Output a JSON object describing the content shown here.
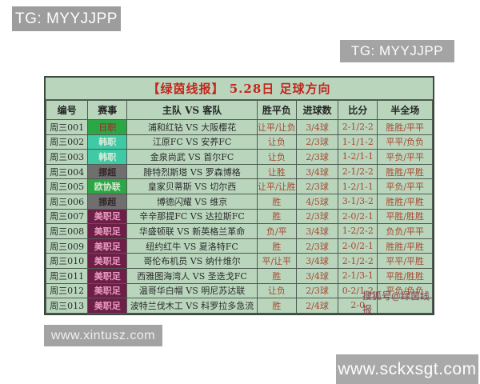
{
  "watermarks": {
    "tg_top_left": "TG: MYYJJPP",
    "tg_top_right": "TG: MYYJJPP",
    "site_bottom_left": "www.xintusz.com",
    "site_bottom_right": "www.sckxsgt.com",
    "table_overlay": "搜狐号@绿茵线报"
  },
  "table": {
    "title": "【绿茵线报】 5.28日 足球方向",
    "columns": [
      "编号",
      "赛事",
      "主队 VS 客队",
      "胜平负",
      "进球数",
      "比分",
      "半全场"
    ],
    "rows": [
      {
        "id": "周三001",
        "league": "日职",
        "match": "浦和红钻 VS 大阪樱花",
        "wdl": "让平/让负",
        "goals": "3/4球",
        "score": "2-1/2-2",
        "half_full": "胜胜/平平"
      },
      {
        "id": "周三002",
        "league": "韩职",
        "match": "江原FC VS 安养FC",
        "wdl": "让负",
        "goals": "2/3球",
        "score": "1-1/1-2",
        "half_full": "平平/负负"
      },
      {
        "id": "周三003",
        "league": "韩职",
        "match": "金泉尚武 VS 首尔FC",
        "wdl": "让负",
        "goals": "2/3球",
        "score": "1-2/1-1",
        "half_full": "平负/平平"
      },
      {
        "id": "周三004",
        "league": "挪超",
        "match": "腓特烈斯塔 VS 罗森博格",
        "wdl": "让胜",
        "goals": "3/4球",
        "score": "2-1/2-2",
        "half_full": "胜胜/平胜"
      },
      {
        "id": "周三005",
        "league": "欧协联",
        "match": "皇家贝蒂斯 VS 切尔西",
        "wdl": "让平/让胜",
        "goals": "2/3球",
        "score": "1-2/1-1",
        "half_full": "平负/平平"
      },
      {
        "id": "周三006",
        "league": "挪超",
        "match": "博德闪耀 VS 维京",
        "wdl": "胜",
        "goals": "4/5球",
        "score": "3-1/3-2",
        "half_full": "胜胜/平胜"
      },
      {
        "id": "周三007",
        "league": "美职足",
        "match": "辛辛那提FC VS 达拉斯FC",
        "wdl": "胜",
        "goals": "2/3球",
        "score": "2-0/2-1",
        "half_full": "平胜/胜胜"
      },
      {
        "id": "周三008",
        "league": "美职足",
        "match": "华盛顿联 VS 新英格兰革命",
        "wdl": "负/平",
        "goals": "3/4球",
        "score": "1-2/2-2",
        "half_full": "负负/平平"
      },
      {
        "id": "周三009",
        "league": "美职足",
        "match": "纽约红牛 VS 夏洛特FC",
        "wdl": "胜",
        "goals": "2/3球",
        "score": "2-0/2-1",
        "half_full": "胜胜/平胜"
      },
      {
        "id": "周三010",
        "league": "美职足",
        "match": "哥伦布机员 VS 纳什维尔",
        "wdl": "平/让平",
        "goals": "3/4球",
        "score": "2-1/2-2",
        "half_full": "平平/平胜"
      },
      {
        "id": "周三011",
        "league": "美职足",
        "match": "西雅图海湾人 VS 圣迭戈FC",
        "wdl": "胜",
        "goals": "3/4球",
        "score": "2-1/3-1",
        "half_full": "平胜/胜胜"
      },
      {
        "id": "周三012",
        "league": "美职足",
        "match": "温哥华白帽 VS 明尼苏达联",
        "wdl": "让负",
        "goals": "2/3球",
        "score": "0-2/1-2",
        "half_full": "平负/负负"
      },
      {
        "id": "周三013",
        "league": "美职足",
        "match": "波特兰伐木工 VS 科罗拉多急流",
        "wdl": "胜",
        "goals": "2/4球",
        "score": "2-0",
        "half_full": ""
      }
    ]
  },
  "colors": {
    "table_bg": "#b9d6bd",
    "title_red": "#c3251c",
    "value_red": "#a8452e",
    "leagues": {
      "日职": {
        "bg": "#2ba845",
        "fg": "#8a4632"
      },
      "韩职": {
        "bg": "#3fc9a5",
        "fg": "#d9ecd9"
      },
      "挪超": {
        "bg": "#6f6f6f",
        "fg": "#33262a"
      },
      "欧协联": {
        "bg": "#2ba845",
        "fg": "#d9e8d2"
      },
      "美职足": {
        "bg": "#6e1f47",
        "fg": "#e89cc0"
      }
    }
  }
}
